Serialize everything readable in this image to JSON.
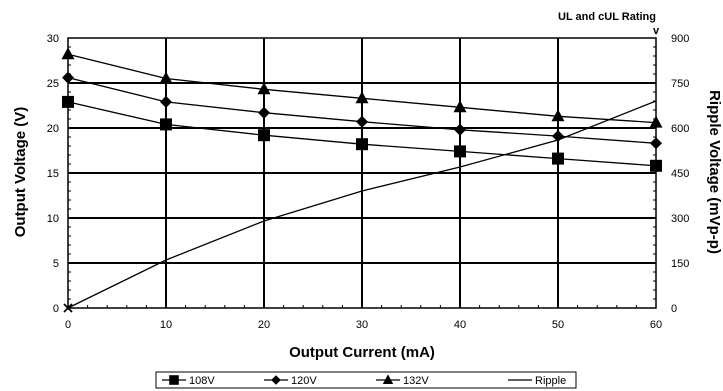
{
  "chart_data": {
    "type": "line",
    "xlabel": "Output Current (mA)",
    "ylabel": "Output Voltage (V)",
    "y2label": "Ripple Voltage (mVp-p)",
    "xlim": [
      0,
      60
    ],
    "ylim": [
      0,
      30
    ],
    "y2lim": [
      0,
      900
    ],
    "x_ticks": [
      "0",
      "10",
      "20",
      "30",
      "40",
      "50",
      "60"
    ],
    "y_ticks": [
      "0",
      "5",
      "10",
      "15",
      "20",
      "25",
      "30"
    ],
    "y2_ticks": [
      "0",
      "150",
      "300",
      "450",
      "600",
      "750",
      "900"
    ],
    "grid": true,
    "annotation": {
      "text": "UL and cUL Rating",
      "arrow": "v",
      "x": 60
    },
    "legend_position": "bottom",
    "series": [
      {
        "name": "108V",
        "marker": "square",
        "axis": "left",
        "x": [
          0,
          10,
          20,
          30,
          40,
          50,
          60
        ],
        "y": [
          22.9,
          20.4,
          19.2,
          18.2,
          17.4,
          16.6,
          15.8
        ]
      },
      {
        "name": "120V",
        "marker": "diamond",
        "axis": "left",
        "x": [
          0,
          10,
          20,
          30,
          40,
          50,
          60
        ],
        "y": [
          25.6,
          22.9,
          21.7,
          20.7,
          19.8,
          19.1,
          18.3
        ]
      },
      {
        "name": "132V",
        "marker": "triangle",
        "axis": "left",
        "x": [
          0,
          10,
          20,
          30,
          40,
          50,
          60
        ],
        "y": [
          28.2,
          25.5,
          24.3,
          23.3,
          22.3,
          21.3,
          20.6
        ]
      },
      {
        "name": "Ripple",
        "marker": "none",
        "axis": "right",
        "x": [
          0,
          10,
          20,
          30,
          40,
          50,
          60
        ],
        "y": [
          0,
          160,
          290,
          390,
          470,
          560,
          690
        ]
      }
    ]
  }
}
